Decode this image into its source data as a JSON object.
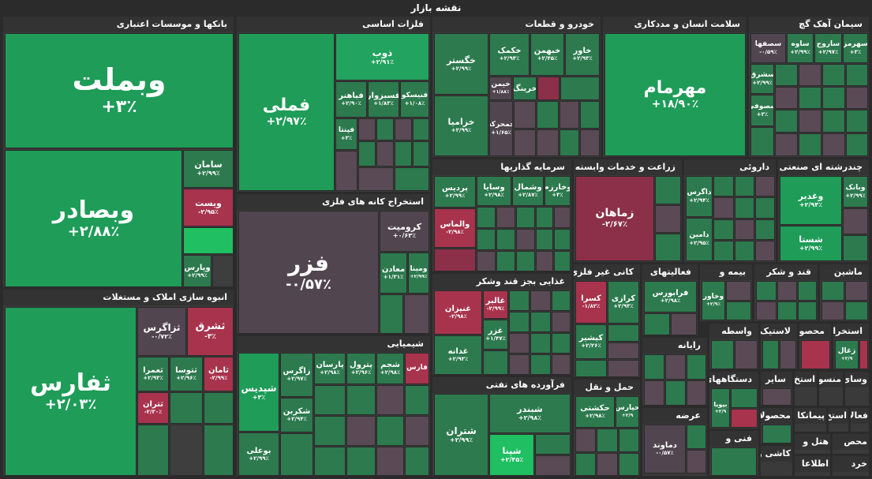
{
  "title": "نقشه بازار",
  "colors": {
    "strong_green": "#1e9c58",
    "green": "#2c7a4e",
    "bright_green": "#1fbf62",
    "red": "#a8334d",
    "neutral": "#514650",
    "background": "#2b2b2b"
  },
  "sectors": {
    "banks": {
      "label": "بانکها و موسسات اعتباری",
      "tiles": [
        {
          "sym": "وبملت",
          "chg": "+۳٪"
        },
        {
          "sym": "وبصادر",
          "chg": "+۲/۸۸٪"
        },
        {
          "sym": "سامان",
          "chg": "+۲/۹۹٪"
        },
        {
          "sym": "ویست",
          "chg": "-۲/۹۵٪"
        },
        {
          "sym": "وپارس",
          "chg": "+۲/۹۹٪"
        }
      ]
    },
    "metals": {
      "label": "فلزات اساسی",
      "tiles": [
        {
          "sym": "فملی",
          "chg": "+۲/۹۷٪"
        },
        {
          "sym": "ذوب",
          "chg": "+۲/۹۱٪"
        },
        {
          "sym": "فباهنر",
          "chg": "+۲/۹۰٪"
        },
        {
          "sym": "فسبزوار",
          "chg": "+۱/۸۳٪"
        },
        {
          "sym": "فنیسکو",
          "chg": "+۱/۰۸٪"
        },
        {
          "sym": "فپنتا",
          "chg": "+۳٪"
        }
      ]
    },
    "mining": {
      "label": "استخراج کانه های فلزی",
      "tiles": [
        {
          "sym": "فزر",
          "chg": "-۰/۵۷٪"
        },
        {
          "sym": "کرومیت",
          "chg": "+۰/۶۳٪"
        },
        {
          "sym": "معادن",
          "chg": "+۱/۳۱٪"
        },
        {
          "sym": "ومینا",
          "chg": "+۲/۹۹٪"
        }
      ]
    },
    "auto": {
      "label": "خودرو و قطعات",
      "tiles": [
        {
          "sym": "خاور",
          "chg": "+۲/۹۳٪"
        },
        {
          "sym": "خبهمن",
          "chg": "+۲/۴۵٪"
        },
        {
          "sym": "خکمک",
          "chg": "+۲/۹۴٪"
        },
        {
          "sym": "خگستر",
          "chg": "+۲/۹۹٪"
        },
        {
          "sym": "خرینگ",
          "chg": ""
        },
        {
          "sym": "خمحرکه",
          "chg": "+۱/۶۵٪"
        },
        {
          "sym": "خزامیا",
          "chg": "+۲/۹۹٪"
        },
        {
          "sym": "خیمن",
          "chg": "+۱/۸۸٪"
        }
      ]
    },
    "health": {
      "label": "سلامت انسان و مددکاری",
      "tiles": [
        {
          "sym": "مهرمام",
          "chg": "+۱۸/۹۰٪"
        }
      ]
    },
    "cement": {
      "label": "سیمان آهک گچ",
      "tiles": [
        {
          "sym": "سهرمز",
          "chg": "+۳٪"
        },
        {
          "sym": "ساروج",
          "chg": "+۲/۹۷٪"
        },
        {
          "sym": "ساوه",
          "chg": "+۲/۹۹٪"
        },
        {
          "sym": "سصفها",
          "chg": "-۰/۵۹٪"
        },
        {
          "sym": "سشرق",
          "chg": "+۲/۹۹٪"
        },
        {
          "sym": "سصوفی",
          "chg": "+۳٪"
        }
      ]
    },
    "investment": {
      "label": "سرمایه گذاریها",
      "tiles": [
        {
          "sym": "وخارزم",
          "chg": "+۳٪"
        },
        {
          "sym": "وشمال",
          "chg": "+۲/۸۷٪"
        },
        {
          "sym": "وسایا",
          "chg": "+۲/۹۸٪"
        },
        {
          "sym": "پردیس",
          "chg": "+۲/۹۹٪"
        },
        {
          "sym": "والماس",
          "chg": "-۲/۹۸٪"
        }
      ]
    },
    "agri": {
      "label": "زراعت و خدمات وابسته",
      "tiles": [
        {
          "sym": "زماهان",
          "chg": "-۲/۶۷٪"
        }
      ]
    },
    "pharma": {
      "label": "داروئی",
      "tiles": [
        {
          "sym": "داگرس",
          "chg": "+۲/۹۴٪"
        },
        {
          "sym": "دامین",
          "chg": "+۲/۹۵٪"
        }
      ]
    },
    "multi": {
      "label": "چندرشته ای صنعتی",
      "tiles": [
        {
          "sym": "وغدیر",
          "chg": "+۲/۹۴٪"
        },
        {
          "sym": "شستا",
          "chg": "+۲/۹۹٪"
        },
        {
          "sym": "وبانک",
          "chg": "+۲/۹۹٪"
        }
      ]
    },
    "realestate": {
      "label": "انبوه سازی املاک و مستغلات",
      "tiles": [
        {
          "sym": "ثفارس",
          "chg": "+۲/۰۳٪"
        },
        {
          "sym": "ثزاگرس",
          "chg": "-۰/۷۲٪"
        },
        {
          "sym": "ثشرق",
          "chg": "-۳٪"
        },
        {
          "sym": "ثعمرا",
          "chg": "+۲/۹۳٪"
        },
        {
          "sym": "ثتوسا",
          "chg": "+۲/۹۶٪"
        },
        {
          "sym": "ثامان",
          "chg": "-۲/۹۹٪"
        },
        {
          "sym": "ثتران",
          "chg": "-۲/۳۰٪"
        }
      ]
    },
    "chemical": {
      "label": "شیمیایی",
      "tiles": [
        {
          "sym": "شپدیس",
          "chg": "+۳٪"
        },
        {
          "sym": "زاگرس",
          "chg": "+۲/۹۷٪"
        },
        {
          "sym": "پارسان",
          "chg": "+۲/۹۸٪"
        },
        {
          "sym": "پترول",
          "chg": "+۲/۹۶٪"
        },
        {
          "sym": "شجم",
          "chg": "+۲/۹۸٪"
        },
        {
          "sym": "فارس",
          "chg": ""
        },
        {
          "sym": "شکربن",
          "chg": "+۲/۹۴٪"
        },
        {
          "sym": "بوعلی",
          "chg": "+۲/۹۹٪"
        }
      ]
    },
    "food": {
      "label": "غذایی بجز قند وشکر",
      "tiles": [
        {
          "sym": "غالبر",
          "chg": "-۲/۹۹٪"
        },
        {
          "sym": "غنیزان",
          "chg": "-۲/۹۸٪"
        },
        {
          "sym": "غزر",
          "chg": "+۱/۴۷٪"
        },
        {
          "sym": "غدانه",
          "chg": "+۲/۹۳٪"
        }
      ]
    },
    "refinery": {
      "label": "فرآورده های نفتی",
      "tiles": [
        {
          "sym": "شبندر",
          "chg": "+۲/۹۸٪"
        },
        {
          "sym": "شتران",
          "chg": "+۲/۹۹٪"
        },
        {
          "sym": "شپنا",
          "chg": "+۲/۴۵٪"
        }
      ]
    },
    "nonmetal": {
      "label": "کانی غیر فلزی",
      "tiles": [
        {
          "sym": "کسرا",
          "chg": "-۱/۸۲٪"
        },
        {
          "sym": "کرازی",
          "chg": "+۲/۹۳٪"
        },
        {
          "sym": "کیشیر",
          "chg": "+۲/۲۶٪"
        }
      ]
    },
    "services": {
      "label": "فعالیتهای",
      "tiles": [
        {
          "sym": "فرابورس",
          "chg": "+۲/۹۸٪"
        }
      ]
    },
    "insurance": {
      "label": "بیمه و",
      "tiles": [
        {
          "sym": "وخاور",
          "chg": "+۲/۹٪"
        }
      ]
    },
    "sugar": {
      "label": "قند و شکر"
    },
    "machinery": {
      "label": "ماشین"
    },
    "transport": {
      "label": "حمل و نقل",
      "tiles": [
        {
          "sym": "حکشتی",
          "chg": "+۲/۹۸٪"
        },
        {
          "sym": "حپارس",
          "chg": "+۲/۹"
        }
      ]
    },
    "computer": {
      "label": "رایانه"
    },
    "supply": {
      "label": "عرضه",
      "tiles": [
        {
          "sym": "دماوند",
          "chg": "-۰/۵۷٪"
        }
      ]
    },
    "broker": {
      "label": "واسطه"
    },
    "rubber": {
      "label": "لاستیک"
    },
    "products": {
      "label": "محصولا"
    },
    "extraction": {
      "label": "استخرا",
      "tiles": [
        {
          "sym": "زغال",
          "chg": "+۲/۹"
        }
      ]
    },
    "devices": {
      "label": "دستگاههای",
      "tiles": [
        {
          "sym": "بپویا",
          "chg": "+۲/۹"
        }
      ]
    },
    "other": {
      "label": "سایر"
    },
    "extraction2": {
      "label": "استخ"
    },
    "media": {
      "label": "منسو"
    },
    "tools": {
      "label": "وسائ"
    },
    "art": {
      "label": "فنی و"
    },
    "products2": {
      "label": "محصولا"
    },
    "contract": {
      "label": "پیمانکا"
    },
    "extraction3": {
      "label": "استخ"
    },
    "hotel": {
      "label": "هتل و"
    },
    "tile": {
      "label": "کاشی و"
    },
    "info": {
      "label": "اطلاعا"
    },
    "activity": {
      "label": "فعالا"
    },
    "mahsul": {
      "label": "محص"
    },
    "retail": {
      "label": "خرد"
    }
  }
}
